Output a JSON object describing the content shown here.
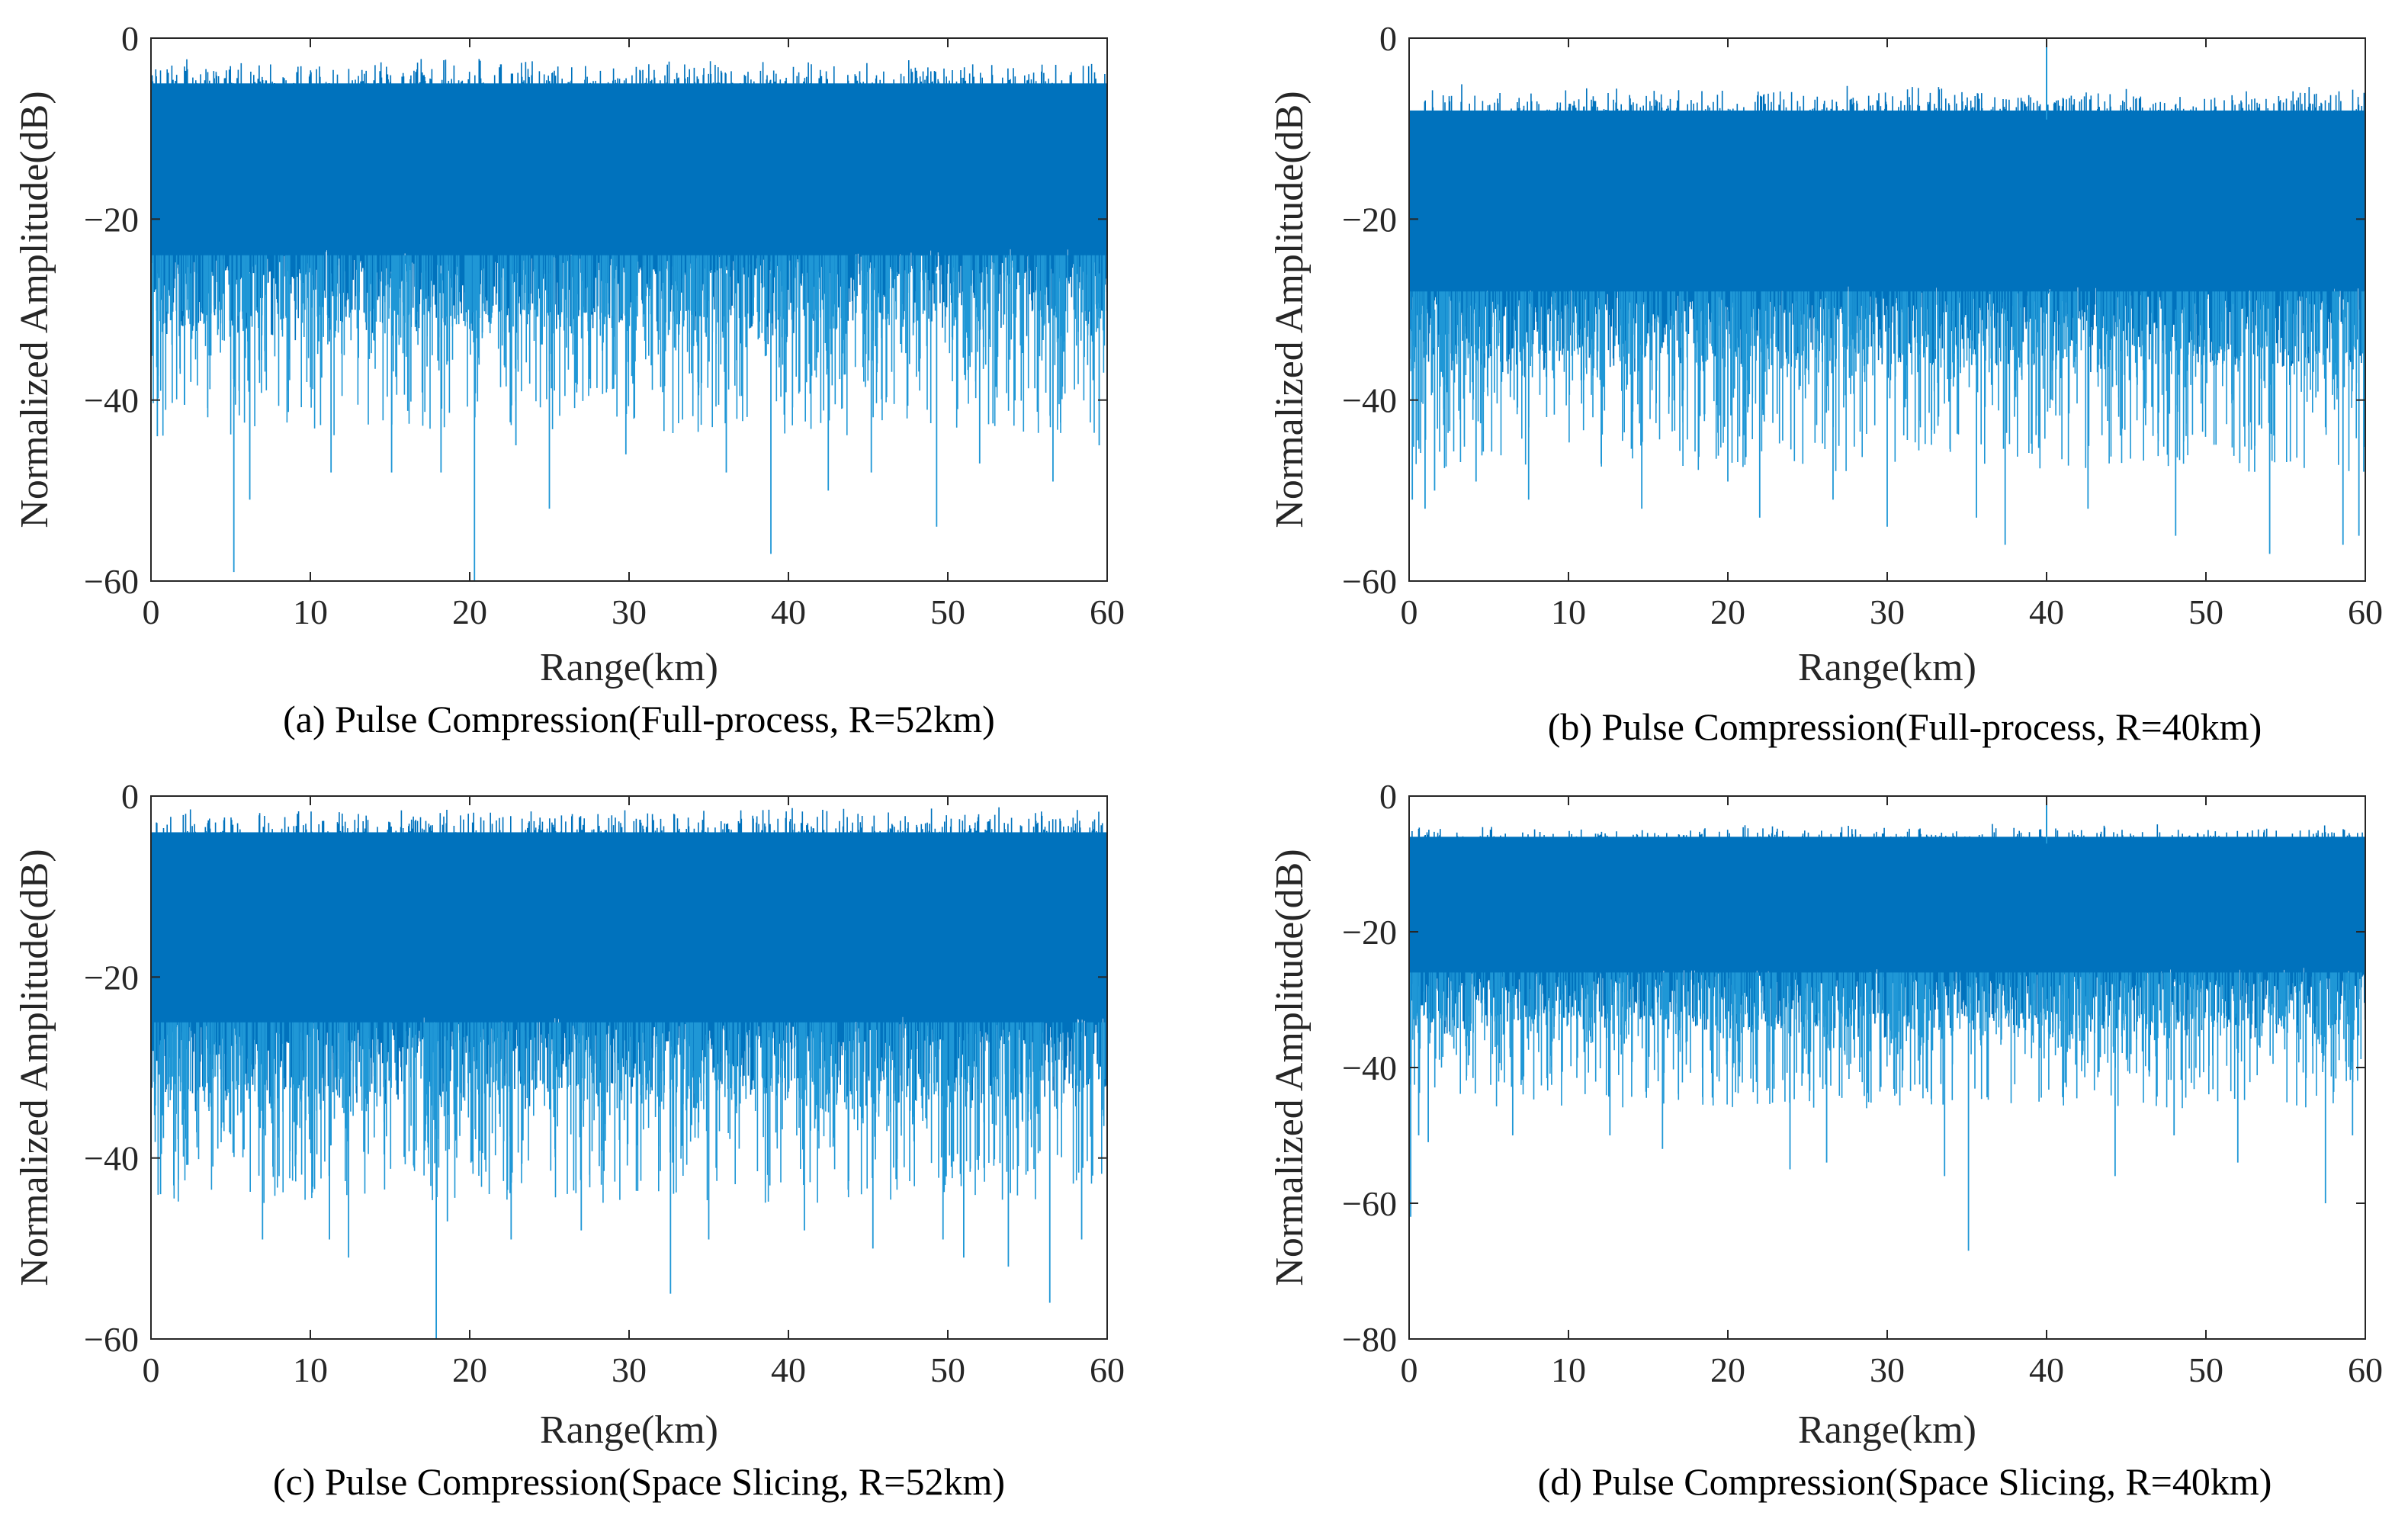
{
  "chart_data": [
    {
      "type": "line",
      "caption": "(a) Pulse Compression(Full-process, R=52km)",
      "xlabel": "Range(km)",
      "ylabel": "Normalized Amplitude(dB)",
      "xlim": [
        0,
        60
      ],
      "ylim": [
        -60,
        0
      ],
      "xticks": [
        "0",
        "10",
        "20",
        "30",
        "40",
        "50",
        "60"
      ],
      "yticks": [
        "0",
        "−20",
        "−40",
        "−60"
      ],
      "grid": false,
      "series_color": "#0072BD",
      "spike_color": "#1f97d6",
      "noise_band": {
        "top_db": -6,
        "bottom_db": -26,
        "peak_level_db": -2
      },
      "deep_nulls": [
        [
          0.4,
          -44
        ],
        [
          2.5,
          -38
        ],
        [
          5.2,
          -59
        ],
        [
          6.2,
          -51
        ],
        [
          11.3,
          -48
        ],
        [
          15.1,
          -48
        ],
        [
          18.2,
          -48
        ],
        [
          20.3,
          -61
        ],
        [
          22.9,
          -45
        ],
        [
          25.0,
          -52
        ],
        [
          29.8,
          -46
        ],
        [
          36.1,
          -48
        ],
        [
          38.9,
          -57
        ],
        [
          42.5,
          -50
        ],
        [
          45.2,
          -48
        ],
        [
          49.3,
          -54
        ],
        [
          52.0,
          -47
        ],
        [
          56.6,
          -49
        ],
        [
          59.5,
          -45
        ]
      ]
    },
    {
      "type": "line",
      "caption": "(b) Pulse Compression(Full-process, R=40km)",
      "xlabel": "Range(km)",
      "ylabel": "Normalized Amplitude(dB)",
      "xlim": [
        0,
        60
      ],
      "ylim": [
        -60,
        0
      ],
      "xticks": [
        "0",
        "10",
        "20",
        "30",
        "40",
        "50",
        "60"
      ],
      "yticks": [
        "0",
        "−20",
        "−40",
        "−60"
      ],
      "grid": false,
      "series_color": "#0072BD",
      "spike_color": "#1f97d6",
      "noise_band": {
        "top_db": -9,
        "bottom_db": -30,
        "peak_level_db": -5
      },
      "peak": {
        "x": 40,
        "y": 0
      },
      "deep_nulls": [
        [
          0.2,
          -51
        ],
        [
          1.0,
          -52
        ],
        [
          1.6,
          -50
        ],
        [
          4.2,
          -49
        ],
        [
          7.5,
          -51
        ],
        [
          14.6,
          -52
        ],
        [
          20.0,
          -49
        ],
        [
          22.0,
          -53
        ],
        [
          26.6,
          -51
        ],
        [
          30.0,
          -54
        ],
        [
          35.6,
          -53
        ],
        [
          37.4,
          -56
        ],
        [
          42.6,
          -52
        ],
        [
          48.1,
          -55
        ],
        [
          54.0,
          -57
        ],
        [
          58.6,
          -56
        ],
        [
          59.6,
          -55
        ]
      ]
    },
    {
      "type": "line",
      "caption": "(c) Pulse Compression(Space Slicing, R=52km)",
      "xlabel": "Range(km)",
      "ylabel": "Normalized Amplitude(dB)",
      "xlim": [
        0,
        60
      ],
      "ylim": [
        -60,
        0
      ],
      "xticks": [
        "0",
        "10",
        "20",
        "30",
        "40",
        "50",
        "60"
      ],
      "yticks": [
        "0",
        "−20",
        "−40",
        "−60"
      ],
      "grid": false,
      "series_color": "#0072BD",
      "spike_color": "#1f97d6",
      "noise_band": {
        "top_db": -5,
        "bottom_db": -27,
        "peak_level_db": -1
      },
      "deep_nulls": [
        [
          0.6,
          -44
        ],
        [
          7.0,
          -49
        ],
        [
          11.2,
          -49
        ],
        [
          12.4,
          -51
        ],
        [
          17.9,
          -60
        ],
        [
          18.6,
          -47
        ],
        [
          22.6,
          -49
        ],
        [
          27.0,
          -48
        ],
        [
          32.6,
          -55
        ],
        [
          35.0,
          -49
        ],
        [
          41.0,
          -48
        ],
        [
          45.3,
          -50
        ],
        [
          49.7,
          -49
        ],
        [
          51.0,
          -51
        ],
        [
          53.8,
          -52
        ],
        [
          56.4,
          -56
        ],
        [
          58.4,
          -49
        ]
      ]
    },
    {
      "type": "line",
      "caption": "(d) Pulse Compression(Space Slicing, R=40km)",
      "xlabel": "Range(km)",
      "ylabel": "Normalized Amplitude(dB)",
      "xlim": [
        0,
        60
      ],
      "ylim": [
        -80,
        0
      ],
      "xticks": [
        "0",
        "10",
        "20",
        "30",
        "40",
        "50",
        "60"
      ],
      "yticks": [
        "0",
        "−20",
        "−40",
        "−60",
        "−80"
      ],
      "grid": false,
      "series_color": "#0072BD",
      "spike_color": "#1f97d6",
      "noise_band": {
        "top_db": -7,
        "bottom_db": -28,
        "peak_level_db": -4
      },
      "peak": {
        "x": 40,
        "y": 0
      },
      "deep_nulls": [
        [
          0.1,
          -62
        ],
        [
          0.6,
          -50
        ],
        [
          1.2,
          -51
        ],
        [
          6.5,
          -50
        ],
        [
          12.6,
          -50
        ],
        [
          15.9,
          -52
        ],
        [
          23.9,
          -55
        ],
        [
          26.2,
          -54
        ],
        [
          33.6,
          -56
        ],
        [
          35.1,
          -67
        ],
        [
          44.3,
          -56
        ],
        [
          48.0,
          -50
        ],
        [
          52.0,
          -54
        ],
        [
          57.5,
          -60
        ],
        [
          59.2,
          -50
        ]
      ]
    }
  ]
}
